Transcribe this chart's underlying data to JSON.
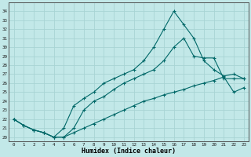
{
  "xlabel": "Humidex (Indice chaleur)",
  "bg_color": "#c2e8e8",
  "grid_color": "#a8d4d4",
  "line_color": "#006868",
  "xlim": [
    -0.5,
    23.5
  ],
  "ylim": [
    19.5,
    35.0
  ],
  "xticks": [
    0,
    1,
    2,
    3,
    4,
    5,
    6,
    7,
    8,
    9,
    10,
    11,
    12,
    13,
    14,
    15,
    16,
    17,
    18,
    19,
    20,
    21,
    22,
    23
  ],
  "yticks": [
    20,
    21,
    22,
    23,
    24,
    25,
    26,
    27,
    28,
    29,
    30,
    31,
    32,
    33,
    34
  ],
  "series1_x": [
    0,
    1,
    2,
    3,
    4,
    5,
    6,
    7,
    8,
    9,
    10,
    11,
    12,
    13,
    14,
    15,
    16,
    17,
    18,
    19,
    20,
    21,
    22,
    23
  ],
  "series1_y": [
    22.0,
    21.3,
    20.8,
    20.5,
    20.0,
    20.0,
    20.5,
    21.0,
    21.5,
    22.0,
    22.5,
    23.0,
    23.5,
    24.0,
    24.3,
    24.7,
    25.0,
    25.3,
    25.7,
    26.0,
    26.3,
    26.7,
    25.0,
    25.5
  ],
  "series2_x": [
    0,
    1,
    2,
    3,
    4,
    5,
    6,
    7,
    8,
    9,
    10,
    11,
    12,
    13,
    14,
    15,
    16,
    17,
    18,
    19,
    20,
    21,
    22,
    23
  ],
  "series2_y": [
    22.0,
    21.3,
    20.8,
    20.5,
    20.0,
    20.0,
    21.0,
    23.0,
    24.0,
    24.5,
    25.3,
    26.0,
    26.5,
    27.0,
    27.5,
    28.5,
    30.0,
    31.0,
    29.0,
    28.8,
    28.8,
    26.5,
    26.5,
    26.5
  ],
  "series3_x": [
    0,
    1,
    2,
    3,
    4,
    5,
    6,
    7,
    8,
    9,
    10,
    11,
    12,
    13,
    14,
    15,
    16,
    17,
    18,
    19,
    20,
    21,
    22,
    23
  ],
  "series3_y": [
    22.0,
    21.3,
    20.8,
    20.5,
    20.0,
    21.0,
    23.5,
    24.3,
    25.0,
    26.0,
    26.5,
    27.0,
    27.5,
    28.5,
    30.0,
    32.0,
    34.0,
    32.5,
    31.0,
    28.5,
    27.5,
    26.8,
    27.0,
    26.5
  ]
}
